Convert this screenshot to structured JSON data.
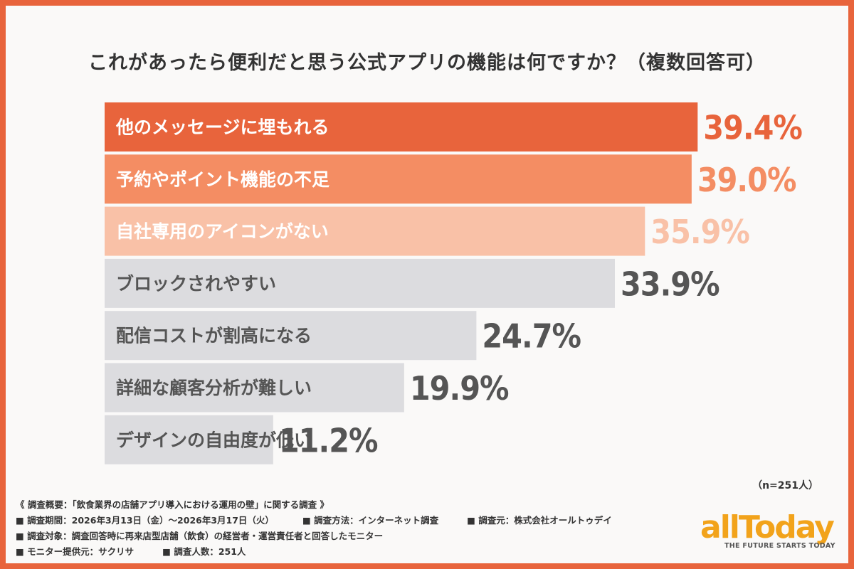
{
  "chart_data": {
    "type": "bar",
    "orientation": "horizontal",
    "title": "これがあったら便利だと思う公式アプリの機能は何ですか？（複数回答可）",
    "categories": [
      "他のメッセージに埋もれる",
      "予約やポイント機能の不足",
      "自社専用のアイコンがない",
      "ブロックされやすい",
      "配信コストが割高になる",
      "詳細な顧客分析が難しい",
      "デザインの自由度が低い"
    ],
    "values": [
      39.4,
      39.0,
      35.9,
      33.9,
      24.7,
      19.9,
      11.2
    ],
    "value_labels": [
      "39.4%",
      "39.0%",
      "35.9%",
      "33.9%",
      "24.7%",
      "19.9%",
      "11.2%"
    ],
    "bar_colors": [
      "#e8643c",
      "#f48d63",
      "#f9c1a7",
      "#dcdcdf",
      "#dcdcdf",
      "#dcdcdf",
      "#dcdcdf"
    ],
    "label_colors": [
      "#ffffff",
      "#ffffff",
      "#ffffff",
      "#555555",
      "#555555",
      "#555555",
      "#555555"
    ],
    "value_colors": [
      "#e8643c",
      "#f48d63",
      "#f9c1a7",
      "#555555",
      "#555555",
      "#555555",
      "#555555"
    ],
    "xlim": [
      0,
      40
    ]
  },
  "sample_note": "（n=251人）",
  "survey": {
    "heading": "《 調査概要：「飲食業界の店舗アプリ導入における運用の壁」に関する調査 》",
    "period": "■ 調査期間：2026年3月13日（金）～2026年3月17日（火）",
    "method": "■ 調査方法：インターネット調査",
    "source": "■ 調査元：株式会社オールトゥデイ",
    "target": "■ 調査対象：調査回答時に再来店型店舗（飲食）の経営者・運営責任者と回答したモニター",
    "provider": "■ モニター提供元：サクリサ",
    "count": "■ 調査人数：251人"
  },
  "logo": {
    "word": "allToday",
    "tagline": "THE FUTURE STARTS TODAY",
    "color": "#f2a31b"
  }
}
